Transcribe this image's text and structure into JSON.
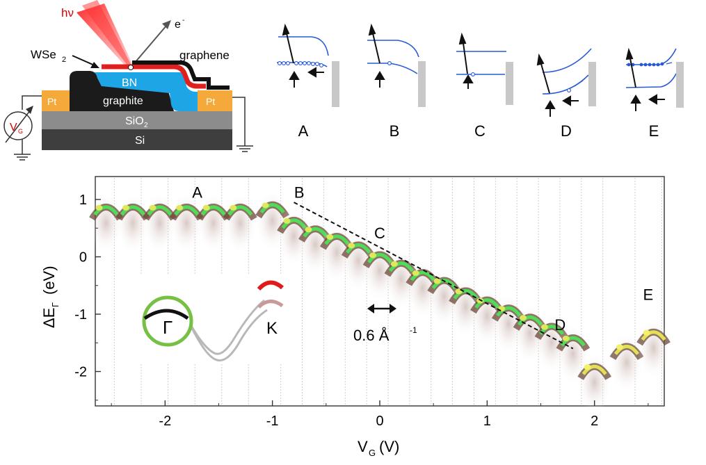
{
  "device": {
    "photon_label": "hν",
    "electron_label": "e",
    "electron_sup": "-",
    "wse2_label": "WSe",
    "wse2_sub": "2",
    "graphene_label": "graphene",
    "bn_label": "BN",
    "graphite_label": "graphite",
    "pt_left_label": "Pt",
    "pt_right_label": "Pt",
    "sio2_label": "SiO",
    "sio2_sub": "2",
    "si_label": "Si",
    "vg_label": "V",
    "vg_sub": "G"
  },
  "band_panels": [
    "A",
    "B",
    "C",
    "D",
    "E"
  ],
  "chart_data": {
    "type": "heatmap",
    "xlabel": "V",
    "xlabel_sub": "G",
    "xlabel_unit": "(V)",
    "ylabel": "ΔE",
    "ylabel_sub": "Γ",
    "ylabel_unit": "(eV)",
    "xlim": [
      -2.65,
      2.65
    ],
    "ylim": [
      -2.6,
      1.4
    ],
    "xticks": [
      -2,
      -1,
      0,
      1,
      2
    ],
    "yticks": [
      -2,
      -1,
      0,
      1
    ],
    "band_top_samples": [
      {
        "vg": -2.55,
        "e": 0.88
      },
      {
        "vg": -2.3,
        "e": 0.88
      },
      {
        "vg": -2.05,
        "e": 0.88
      },
      {
        "vg": -1.8,
        "e": 0.88
      },
      {
        "vg": -1.55,
        "e": 0.88
      },
      {
        "vg": -1.3,
        "e": 0.88
      },
      {
        "vg": -1.0,
        "e": 0.92
      },
      {
        "vg": -0.8,
        "e": 0.65
      },
      {
        "vg": -0.6,
        "e": 0.5
      },
      {
        "vg": -0.4,
        "e": 0.37
      },
      {
        "vg": -0.2,
        "e": 0.22
      },
      {
        "vg": 0.0,
        "e": 0.05
      },
      {
        "vg": 0.2,
        "e": -0.1
      },
      {
        "vg": 0.4,
        "e": -0.26
      },
      {
        "vg": 0.6,
        "e": -0.4
      },
      {
        "vg": 0.8,
        "e": -0.58
      },
      {
        "vg": 1.0,
        "e": -0.74
      },
      {
        "vg": 1.2,
        "e": -0.88
      },
      {
        "vg": 1.4,
        "e": -1.04
      },
      {
        "vg": 1.6,
        "e": -1.2
      },
      {
        "vg": 1.8,
        "e": -1.4
      },
      {
        "vg": 2.0,
        "e": -1.9
      },
      {
        "vg": 2.3,
        "e": -1.55
      },
      {
        "vg": 2.55,
        "e": -1.3
      }
    ],
    "dashed_line": {
      "from": {
        "vg": -0.8,
        "e": 0.95
      },
      "to": {
        "vg": 1.8,
        "e": -1.6
      }
    },
    "annotations": [
      {
        "text": "A",
        "vg": -1.7,
        "e": 1.03
      },
      {
        "text": "B",
        "vg": -0.75,
        "e": 1.03
      },
      {
        "text": "C",
        "vg": 0.0,
        "e": 0.32
      },
      {
        "text": "D",
        "vg": 1.68,
        "e": -1.28
      },
      {
        "text": "E",
        "vg": 2.5,
        "e": -0.75
      }
    ],
    "scale_bar_label": "0.6 Å",
    "scale_bar_sup": "-1",
    "inset_labels": {
      "gamma": "Γ",
      "k": "K"
    },
    "colors": {
      "low": "#ffffff",
      "mid": "#7a4a3a",
      "high": "#4de04d",
      "peak": "#e8e84a"
    }
  }
}
